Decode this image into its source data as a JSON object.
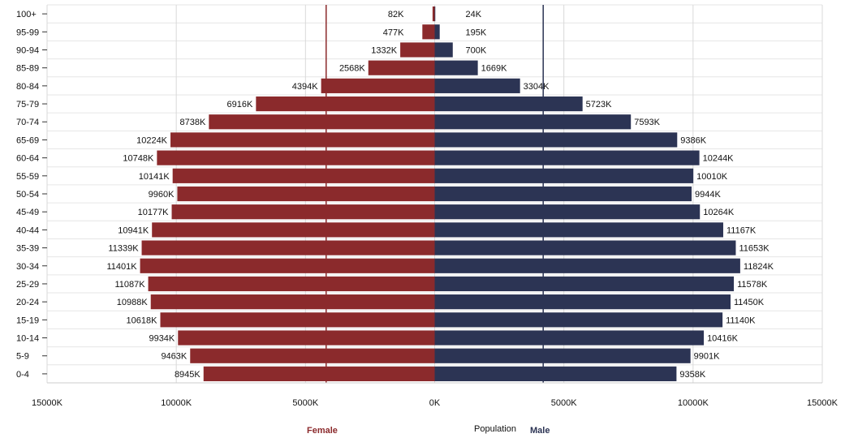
{
  "chart_data": {
    "type": "bar",
    "orientation": "horizontal",
    "categories": [
      "100+",
      "95-99",
      "90-94",
      "85-89",
      "80-84",
      "75-79",
      "70-74",
      "65-69",
      "60-64",
      "55-59",
      "50-54",
      "45-49",
      "40-44",
      "35-39",
      "30-34",
      "25-29",
      "20-24",
      "15-19",
      "10-14",
      "5-9",
      "0-4"
    ],
    "series": [
      {
        "name": "Female",
        "color": "#8b2a2c",
        "values": [
          82,
          477,
          1332,
          2568,
          4394,
          6916,
          8738,
          10224,
          10748,
          10141,
          9960,
          10177,
          10941,
          11339,
          11401,
          11087,
          10988,
          10618,
          9934,
          9463,
          8945
        ],
        "labels": [
          "82K",
          "477K",
          "1332K",
          "2568K",
          "4394K",
          "6916K",
          "8738K",
          "10224K",
          "10748K",
          "10141K",
          "9960K",
          "10177K",
          "10941K",
          "11339K",
          "11401K",
          "11087K",
          "10988K",
          "10618K",
          "9934K",
          "9463K",
          "8945K"
        ]
      },
      {
        "name": "Male",
        "color": "#2c3454",
        "values": [
          24,
          195,
          700,
          1669,
          3304,
          5723,
          7593,
          9386,
          10244,
          10010,
          9944,
          10264,
          11167,
          11653,
          11824,
          11578,
          11450,
          11140,
          10416,
          9901,
          9358
        ],
        "labels": [
          "24K",
          "195K",
          "700K",
          "1669K",
          "3304K",
          "5723K",
          "7593K",
          "9386K",
          "10244K",
          "10010K",
          "9944K",
          "10264K",
          "11167K",
          "11653K",
          "11824K",
          "11578K",
          "11450K",
          "11140K",
          "10416K",
          "9901K",
          "9358K"
        ]
      }
    ],
    "x_unit": "K",
    "x_range": [
      -15000,
      15000
    ],
    "x_ticks": [
      -15000,
      -10000,
      -5000,
      0,
      5000,
      10000,
      15000
    ],
    "x_tick_labels": [
      "15000K",
      "10000K",
      "5000K",
      "0K",
      "5000K",
      "10000K",
      "15000K"
    ],
    "reference_lines": [
      {
        "series": "Female",
        "value": 4200,
        "color": "#8b2a2c"
      },
      {
        "series": "Male",
        "value": 4200,
        "color": "#2c3454"
      }
    ],
    "xlabel": "Population",
    "legend_position": "bottom",
    "grid": true
  }
}
